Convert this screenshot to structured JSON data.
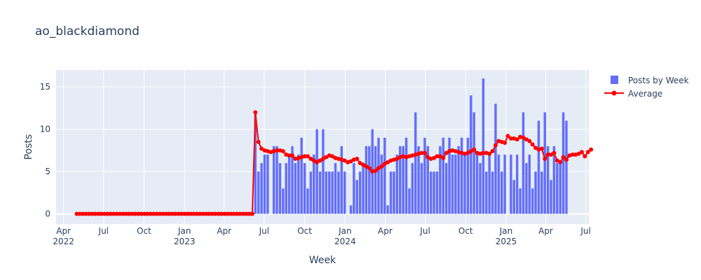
{
  "chart_data": {
    "type": "bar",
    "title": "ao_blackdiamond",
    "xlabel": "Week",
    "ylabel": "Posts",
    "ylim": [
      -1.2,
      17
    ],
    "xlim": [
      "2022-03-15",
      "2025-07-08"
    ],
    "grid": true,
    "legend_position": "top-right",
    "y_ticks": [
      0,
      5,
      10,
      15
    ],
    "x_ticks": [
      {
        "date": "2022-04-01",
        "label": "Apr",
        "sub": "2022"
      },
      {
        "date": "2022-07-01",
        "label": "Jul",
        "sub": ""
      },
      {
        "date": "2022-10-01",
        "label": "Oct",
        "sub": ""
      },
      {
        "date": "2023-01-01",
        "label": "Jan",
        "sub": "2023"
      },
      {
        "date": "2023-04-01",
        "label": "Apr",
        "sub": ""
      },
      {
        "date": "2023-07-01",
        "label": "Jul",
        "sub": ""
      },
      {
        "date": "2023-10-01",
        "label": "Oct",
        "sub": ""
      },
      {
        "date": "2024-01-01",
        "label": "Jan",
        "sub": "2024"
      },
      {
        "date": "2024-04-01",
        "label": "Apr",
        "sub": ""
      },
      {
        "date": "2024-07-01",
        "label": "Jul",
        "sub": ""
      },
      {
        "date": "2024-10-01",
        "label": "Oct",
        "sub": ""
      },
      {
        "date": "2025-01-01",
        "label": "Jan",
        "sub": "2025"
      },
      {
        "date": "2025-04-01",
        "label": "Apr",
        "sub": ""
      },
      {
        "date": "2025-07-01",
        "label": "Jul",
        "sub": ""
      }
    ],
    "x_start": "2022-05-01",
    "interval_days": 7,
    "series": [
      {
        "name": "Posts by Week",
        "type": "bar",
        "color": "#636efa",
        "values": [
          0,
          0,
          0,
          0,
          0,
          0,
          0,
          0,
          0,
          0,
          0,
          0,
          0,
          0,
          0,
          0,
          0,
          0,
          0,
          0,
          0,
          0,
          0,
          0,
          0,
          0,
          0,
          0,
          0,
          0,
          0,
          0,
          0,
          0,
          0,
          0,
          0,
          0,
          0,
          0,
          0,
          0,
          0,
          0,
          0,
          0,
          0,
          0,
          0,
          0,
          0,
          0,
          0,
          0,
          0,
          0,
          0,
          0,
          12,
          5,
          6,
          7,
          7,
          0,
          8,
          8,
          6,
          3,
          6,
          7,
          8,
          6,
          7,
          9,
          6,
          3,
          5,
          7,
          10,
          5,
          10,
          5,
          5,
          5,
          6,
          5,
          8,
          5,
          0,
          1,
          6,
          4,
          5,
          6,
          8,
          8,
          10,
          8,
          9,
          7,
          9,
          1,
          5,
          5,
          7,
          8,
          8,
          9,
          3,
          6,
          12,
          8,
          6,
          9,
          8,
          5,
          5,
          5,
          8,
          9,
          6,
          9,
          7,
          7,
          8,
          9,
          7,
          9,
          14,
          12,
          7,
          6,
          16,
          5,
          7,
          5,
          13,
          7,
          5,
          7,
          0,
          7,
          4,
          7,
          3,
          12,
          6,
          7,
          3,
          5,
          11,
          5,
          12,
          8,
          4,
          8,
          6,
          6,
          12,
          11
        ]
      },
      {
        "name": "Average",
        "type": "line",
        "color": "#ff0000",
        "values": [
          0,
          0,
          0,
          0,
          0,
          0,
          0,
          0,
          0,
          0,
          0,
          0,
          0,
          0,
          0,
          0,
          0,
          0,
          0,
          0,
          0,
          0,
          0,
          0,
          0,
          0,
          0,
          0,
          0,
          0,
          0,
          0,
          0,
          0,
          0,
          0,
          0,
          0,
          0,
          0,
          0,
          0,
          0,
          0,
          0,
          0,
          0,
          0,
          0,
          0,
          0,
          0,
          0,
          0,
          0,
          0,
          0,
          0,
          12,
          8.5,
          7.7,
          7.5,
          7.4,
          7.3,
          7.4,
          7.5,
          7.5,
          7.4,
          7.0,
          6.9,
          6.9,
          6.5,
          6.6,
          6.7,
          6.8,
          6.8,
          6.5,
          6.3,
          6.1,
          6.3,
          6.5,
          6.7,
          6.9,
          6.8,
          6.6,
          6.5,
          6.4,
          6.3,
          6.1,
          6.2,
          6.4,
          6.5,
          6.0,
          5.8,
          5.6,
          5.4,
          5.0,
          5.1,
          5.4,
          5.6,
          5.9,
          6.1,
          6.3,
          6.4,
          6.5,
          6.7,
          6.8,
          6.7,
          6.8,
          6.9,
          7.0,
          7.1,
          7.2,
          7.2,
          6.7,
          6.5,
          6.6,
          6.8,
          6.8,
          6.6,
          7.2,
          7.4,
          7.5,
          7.4,
          7.3,
          7.2,
          7.1,
          7.2,
          7.4,
          7.6,
          7.2,
          7.1,
          7.2,
          7.2,
          7.1,
          7.4,
          8.1,
          8.6,
          8.5,
          8.4,
          9.2,
          8.9,
          8.9,
          8.8,
          9.1,
          9.0,
          8.8,
          8.6,
          8.2,
          7.8,
          7.6,
          7.7,
          6.5,
          7.0,
          7.0,
          7.2,
          6.3,
          6.1,
          6.7,
          6.4,
          6.9,
          7.0,
          7.0,
          7.1,
          7.3,
          6.8,
          7.3,
          7.6
        ]
      }
    ]
  }
}
